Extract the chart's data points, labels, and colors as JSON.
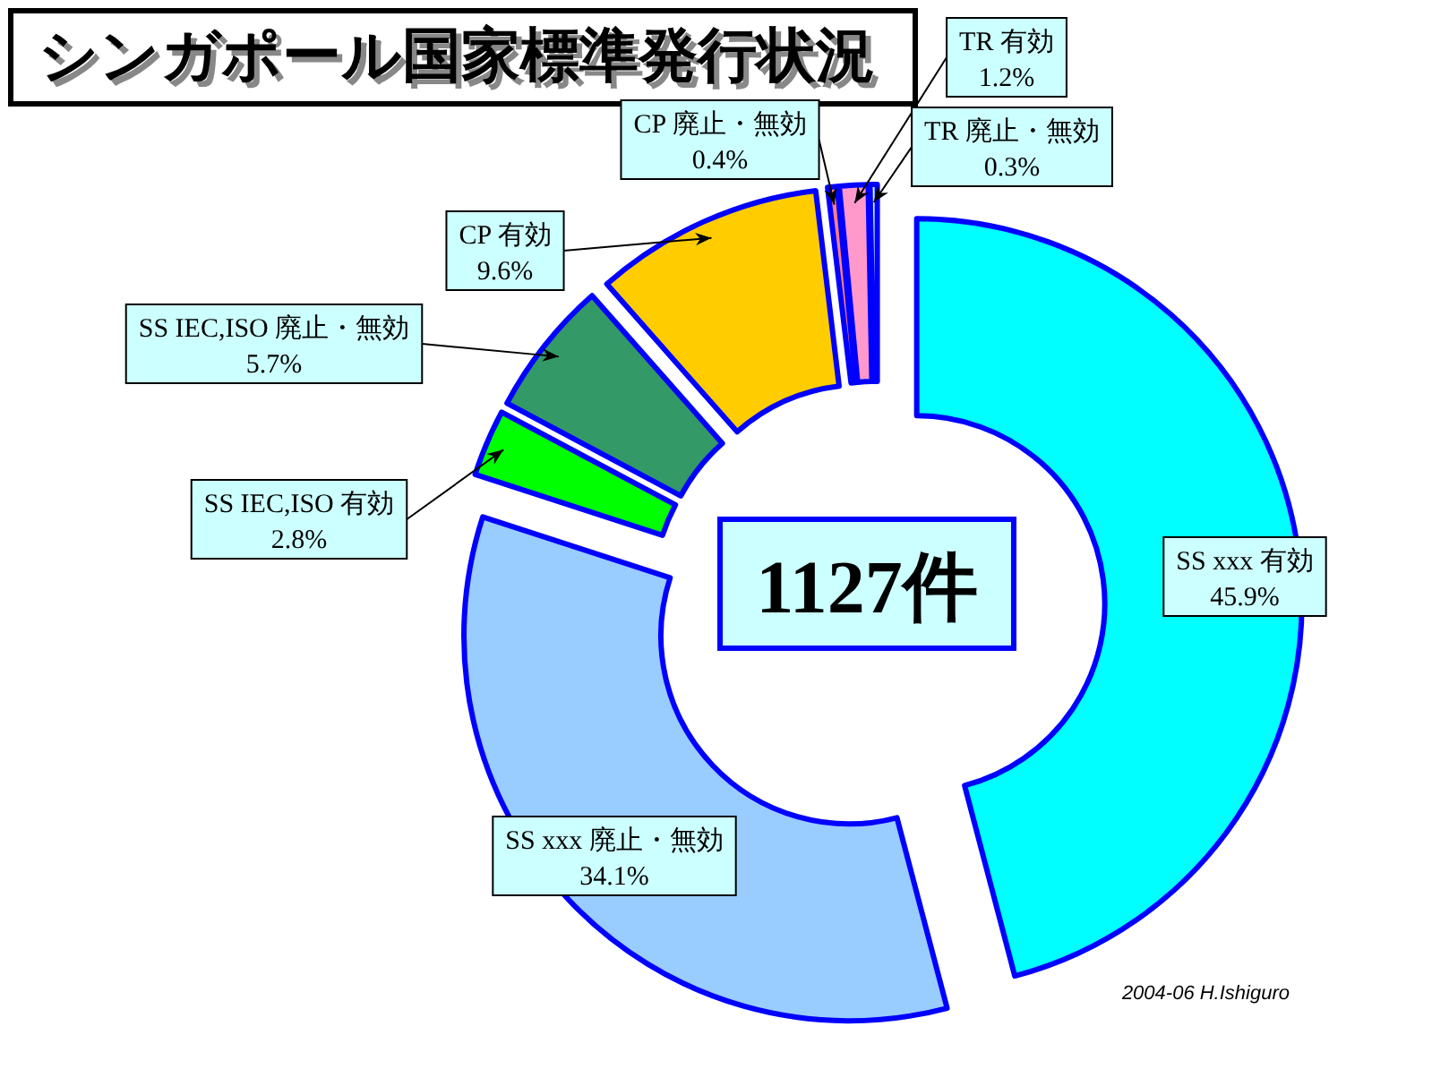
{
  "chart_data": {
    "type": "donut",
    "title": "シンガポール国家標準発行状況",
    "categories": [
      "SS xxx 有効",
      "SS xxx 廃止・無効",
      "SS IEC,ISO 有効",
      "SS IEC,ISO 廃止・無効",
      "CP 有効",
      "CP 廃止・無効",
      "TR 有効",
      "TR 廃止・無効"
    ],
    "values": [
      45.9,
      34.1,
      2.8,
      5.7,
      9.6,
      0.4,
      1.2,
      0.3
    ],
    "value_labels": [
      "45.9%",
      "34.1%",
      "2.8%",
      "5.7%",
      "9.6%",
      "0.4%",
      "1.2%",
      "0.3%"
    ],
    "colors": [
      "#00ffff",
      "#99ccff",
      "#00ff00",
      "#339966",
      "#ffcc00",
      "#ff8080",
      "#ff99cc",
      "#ccffff"
    ],
    "annotations": [
      "1127件",
      "2004-06 H.Ishiguro"
    ]
  }
}
